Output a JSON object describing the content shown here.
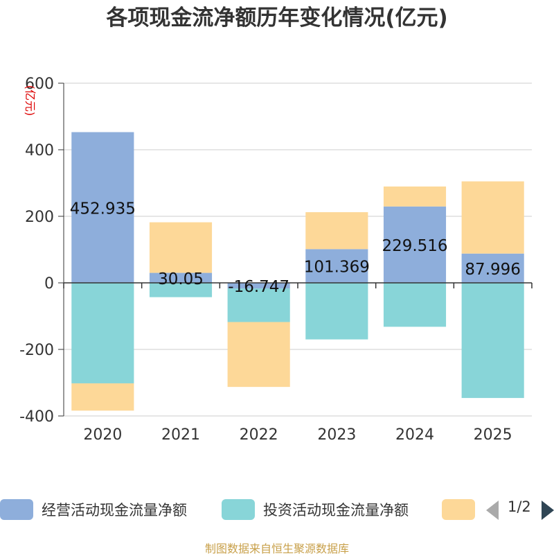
{
  "chart_data": {
    "type": "bar",
    "stacked": true,
    "title": "各项现金流净额历年变化情况(亿元)",
    "ylabel": "(亿元)",
    "xlabel": "",
    "ylim": [
      -400,
      600
    ],
    "yticks": [
      600,
      400,
      200,
      0,
      -200,
      -400
    ],
    "ytick_labels": [
      "600",
      "400",
      "200",
      "0",
      "-200",
      "-400"
    ],
    "categories": [
      "2020",
      "2021",
      "2022",
      "2023",
      "2024",
      "2025"
    ],
    "series": [
      {
        "name": "经营活动现金流量净额",
        "color": "#8eaedb",
        "values": [
          452.935,
          30.05,
          -16.747,
          101.369,
          229.516,
          87.996
        ],
        "labels": [
          "452.935",
          "30.05",
          "-16.747",
          "101.369",
          "229.516",
          "87.996"
        ]
      },
      {
        "name": "投资活动现金流量净额",
        "color": "#88d5d8",
        "values": [
          -302,
          -43,
          -101,
          -170,
          -132,
          -346
        ]
      },
      {
        "name": "",
        "color": "#fdd898",
        "values": [
          -82,
          152,
          -195,
          111,
          60,
          217
        ]
      }
    ],
    "grid": true,
    "legend_position": "bottom"
  },
  "legend": {
    "page": "1/2"
  },
  "source": "制图数据来自恒生聚源数据库"
}
